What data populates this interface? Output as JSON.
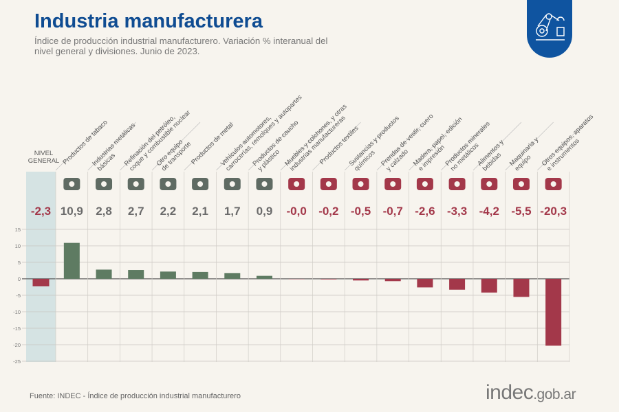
{
  "header": {
    "title": "Industria manufacturera",
    "subtitle": "Índice de producción industrial manufacturero. Variación % interanual del nivel general y divisiones. Junio de 2023."
  },
  "footer": {
    "source": "Fuente: INDEC - Índice de producción industrial manufacturero",
    "logo_main": "indec",
    "logo_suffix": ".gob.ar"
  },
  "badge_icon": "robot-arm-icon",
  "colors": {
    "positive": "#5e7b62",
    "negative": "#a3384a",
    "title": "#0f4c92",
    "highlight": "#cfdfe0"
  },
  "chart_data": {
    "type": "bar",
    "title": "Industria manufacturera",
    "ylim": [
      -25,
      15
    ],
    "yticks": [
      15,
      10,
      5,
      0,
      -5,
      -10,
      -15,
      -20,
      -25
    ],
    "grid": true,
    "categories": [
      "NIVEL\nGENERAL",
      "Productos de tabaco",
      "Industrias metálicas\nbásicas",
      "Refinación del petróleo,\ncoque y combustible nuclear",
      "Otro equipo\nde transporte",
      "Productos de metal",
      "Vehículos automotores,\ncarrocerías, remolques y autopartes",
      "Productos de caucho\ny plástico",
      "Muebles y colchones, y otras\nindustrias manufactureras",
      "Productos textiles",
      "Sustancias y productos\nquímicos",
      "Prendas de vestir, cuero\ny calzado",
      "Madera, papel, edición\ne impresión",
      "Productos minerales\nno metálicos",
      "Alimentos y\nbebidas",
      "Maquinaria y\nequipo",
      "Otros equipos, aparatos\ne instrumentos"
    ],
    "values": [
      -2.3,
      10.9,
      2.8,
      2.7,
      2.2,
      2.1,
      1.7,
      0.9,
      -0.0,
      -0.2,
      -0.5,
      -0.7,
      -2.6,
      -3.3,
      -4.2,
      -5.5,
      -20.3
    ],
    "value_labels": [
      "-2,3",
      "10,9",
      "2,8",
      "2,7",
      "2,2",
      "2,1",
      "1,7",
      "0,9",
      "-0,0",
      "-0,2",
      "-0,5",
      "-0,7",
      "-2,6",
      "-3,3",
      "-4,2",
      "-5,5",
      "-20,3"
    ],
    "icons": [
      "",
      "pipe-icon",
      "metal-coil-icon",
      "refinery-icon",
      "motorcycle-icon",
      "bolt-icon",
      "car-icon",
      "tire-icon",
      "furniture-icon",
      "yarn-icon",
      "flask-icon",
      "sweater-icon",
      "paper-icon",
      "cement-mixer-icon",
      "bottle-icon",
      "tractor-icon",
      "laptop-icon"
    ],
    "highlighted": "NIVEL\nGENERAL"
  }
}
